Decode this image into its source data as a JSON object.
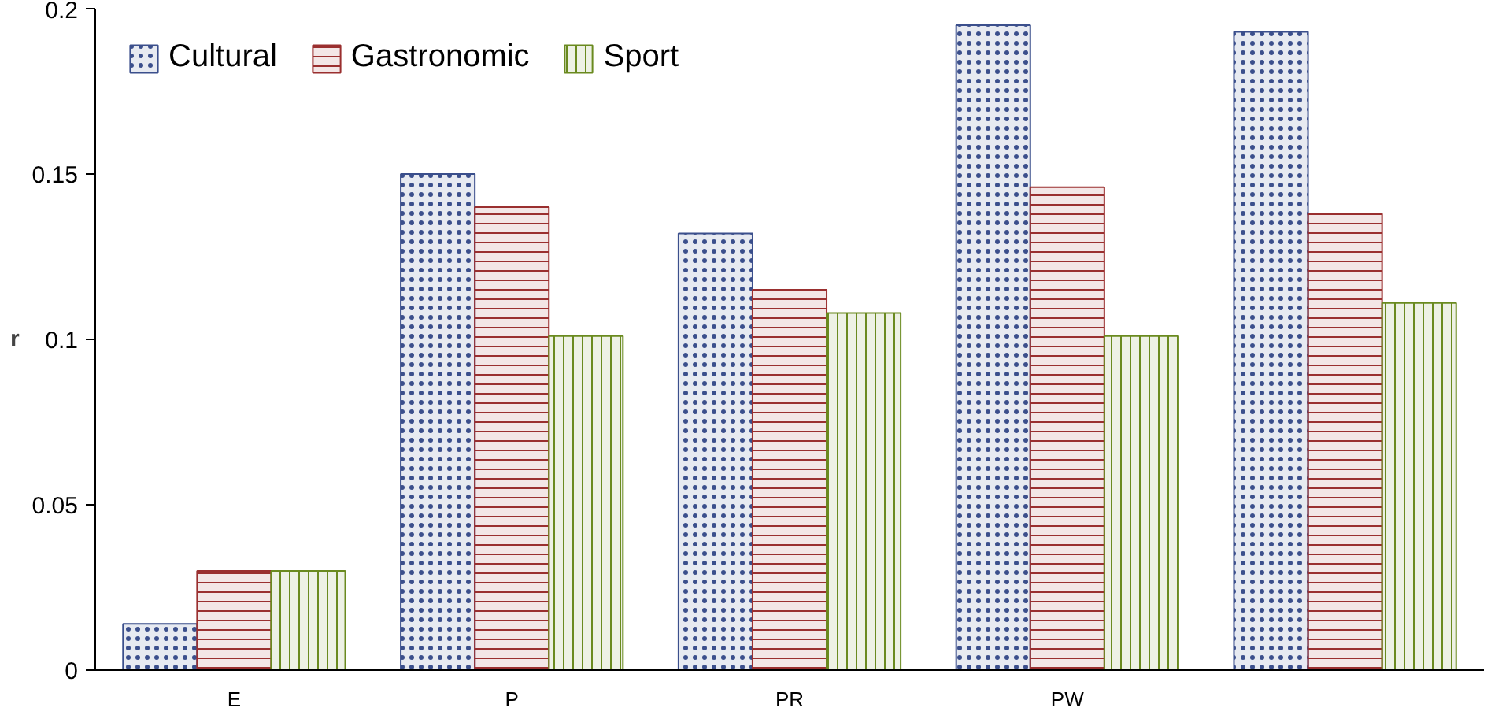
{
  "chart_data": {
    "type": "bar",
    "ylabel": "r",
    "categories": [
      "E",
      "P",
      "PR",
      "PW",
      null
    ],
    "series": [
      {
        "name": "Cultural",
        "color": "#3b4f8c",
        "values": [
          0.014,
          0.15,
          0.132,
          0.195,
          0.193
        ]
      },
      {
        "name": "Gastronomic",
        "color": "#9a2f2f",
        "values": [
          0.03,
          0.14,
          0.115,
          0.146,
          0.138
        ]
      },
      {
        "name": "Sport",
        "color": "#6a8a1f",
        "values": [
          0.03,
          0.101,
          0.108,
          0.101,
          0.111
        ]
      }
    ],
    "ylim": [
      0,
      0.2
    ],
    "yticks": [
      0,
      {
        "value": 0.05,
        "label": "0.05"
      },
      {
        "value": 0.1,
        "label": "0.1"
      },
      {
        "value": 0.15,
        "label": "0.15"
      },
      {
        "value": 0.2,
        "label": "0.2"
      }
    ],
    "grid": false,
    "legend": "top left"
  }
}
